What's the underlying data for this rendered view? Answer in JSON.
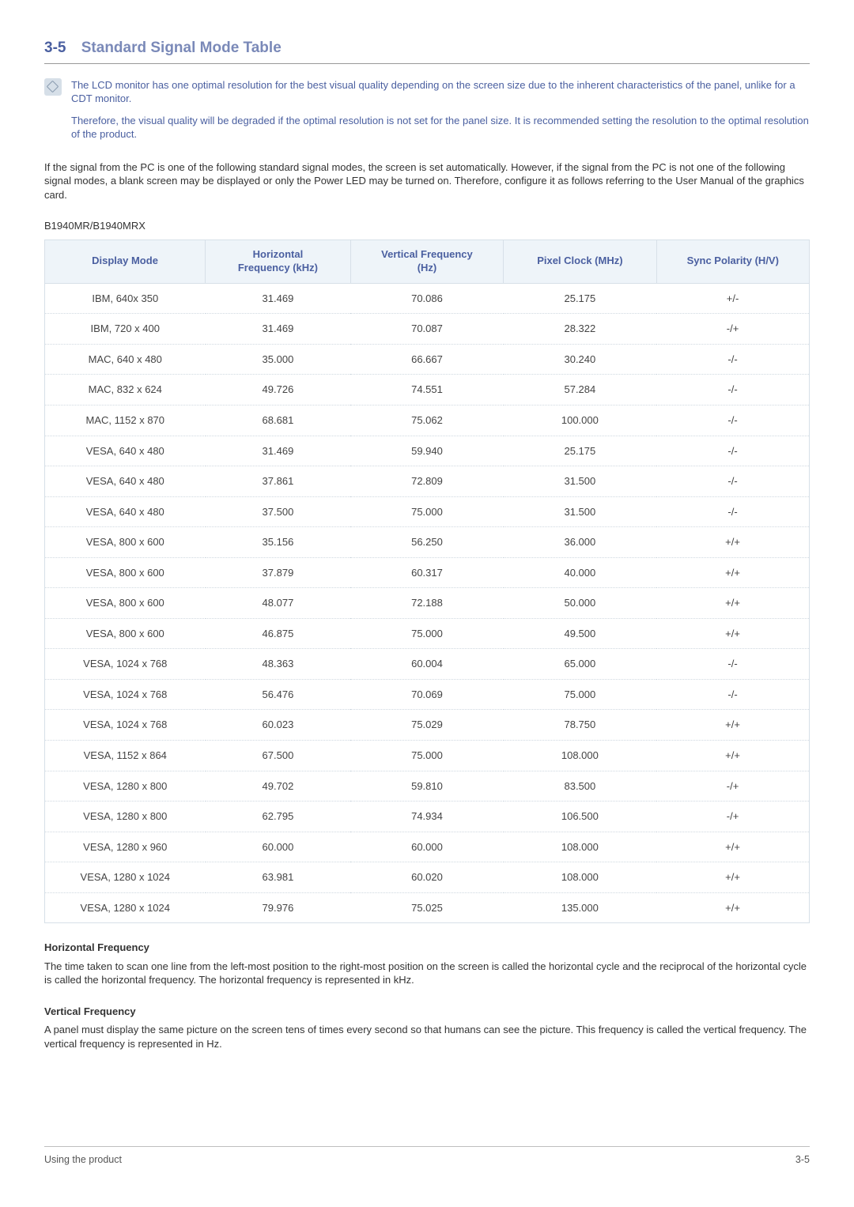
{
  "heading": {
    "number": "3-5",
    "title": "Standard Signal Mode Table"
  },
  "note": {
    "p1": "The LCD monitor has one optimal resolution for the best visual quality depending on the screen size due to the inherent characteristics of the panel, unlike for a CDT monitor.",
    "p2": "Therefore, the visual quality will be degraded if the optimal resolution is not set for the panel size. It is recommended setting the resolution to the optimal resolution of the product."
  },
  "intro": "If the signal from the PC is one of the following standard signal modes, the screen is set automatically. However, if the signal from the PC is not one of the following signal modes, a blank screen may be displayed or only the Power LED may be turned on. Therefore, configure it as follows referring to the User Manual of the graphics card.",
  "model": "B1940MR/B1940MRX",
  "table": {
    "columns": {
      "c0": "Display Mode",
      "c1_l1": "Horizontal",
      "c1_l2": "Frequency (kHz)",
      "c2_l1": "Vertical Frequency",
      "c2_l2": "(Hz)",
      "c3": "Pixel Clock (MHz)",
      "c4": "Sync Polarity (H/V)"
    },
    "widths": [
      "21%",
      "19%",
      "20%",
      "20%",
      "20%"
    ],
    "header_bg": "#eef4f9",
    "header_color": "#4a5fa0",
    "border_color": "#d7e0e8",
    "row_text_color": "#444444",
    "rows": [
      {
        "m": "IBM, 640x 350",
        "h": "31.469",
        "v": "70.086",
        "p": "25.175",
        "s": "+/-"
      },
      {
        "m": "IBM, 720 x 400",
        "h": "31.469",
        "v": "70.087",
        "p": "28.322",
        "s": "-/+"
      },
      {
        "m": "MAC, 640 x 480",
        "h": "35.000",
        "v": "66.667",
        "p": "30.240",
        "s": "-/-"
      },
      {
        "m": "MAC, 832 x 624",
        "h": "49.726",
        "v": "74.551",
        "p": "57.284",
        "s": "-/-"
      },
      {
        "m": "MAC, 1152 x 870",
        "h": "68.681",
        "v": "75.062",
        "p": "100.000",
        "s": "-/-"
      },
      {
        "m": "VESA, 640 x 480",
        "h": "31.469",
        "v": "59.940",
        "p": "25.175",
        "s": "-/-"
      },
      {
        "m": "VESA, 640 x 480",
        "h": "37.861",
        "v": "72.809",
        "p": "31.500",
        "s": "-/-"
      },
      {
        "m": "VESA, 640 x 480",
        "h": "37.500",
        "v": "75.000",
        "p": "31.500",
        "s": "-/-"
      },
      {
        "m": "VESA, 800 x 600",
        "h": "35.156",
        "v": "56.250",
        "p": "36.000",
        "s": "+/+"
      },
      {
        "m": "VESA, 800 x 600",
        "h": "37.879",
        "v": "60.317",
        "p": "40.000",
        "s": "+/+"
      },
      {
        "m": "VESA, 800 x 600",
        "h": "48.077",
        "v": "72.188",
        "p": "50.000",
        "s": "+/+"
      },
      {
        "m": "VESA, 800 x 600",
        "h": "46.875",
        "v": "75.000",
        "p": "49.500",
        "s": "+/+"
      },
      {
        "m": "VESA, 1024 x 768",
        "h": "48.363",
        "v": "60.004",
        "p": "65.000",
        "s": "-/-"
      },
      {
        "m": "VESA, 1024 x 768",
        "h": "56.476",
        "v": "70.069",
        "p": "75.000",
        "s": "-/-"
      },
      {
        "m": "VESA, 1024 x 768",
        "h": "60.023",
        "v": "75.029",
        "p": "78.750",
        "s": "+/+"
      },
      {
        "m": "VESA, 1152 x 864",
        "h": "67.500",
        "v": "75.000",
        "p": "108.000",
        "s": "+/+"
      },
      {
        "m": "VESA, 1280 x 800",
        "h": "49.702",
        "v": "59.810",
        "p": "83.500",
        "s": "-/+"
      },
      {
        "m": "VESA, 1280 x 800",
        "h": "62.795",
        "v": "74.934",
        "p": "106.500",
        "s": "-/+"
      },
      {
        "m": "VESA, 1280 x 960",
        "h": "60.000",
        "v": "60.000",
        "p": "108.000",
        "s": "+/+"
      },
      {
        "m": "VESA, 1280 x 1024",
        "h": "63.981",
        "v": "60.020",
        "p": "108.000",
        "s": "+/+"
      },
      {
        "m": "VESA, 1280 x 1024",
        "h": "79.976",
        "v": "75.025",
        "p": "135.000",
        "s": "+/+"
      }
    ]
  },
  "defs": {
    "hf_title": "Horizontal Frequency",
    "hf_body": "The time taken to scan one line from the left-most position to the right-most position on the screen is called the horizontal cycle and the reciprocal of the horizontal cycle is called the horizontal frequency. The horizontal frequency is represented in kHz.",
    "vf_title": "Vertical Frequency",
    "vf_body": "A panel must display the same picture on the screen tens of times every second so that humans can see the picture. This frequency is called the vertical frequency. The vertical frequency is represented in Hz."
  },
  "footer": {
    "left": "Using the product",
    "right": "3-5"
  },
  "colors": {
    "accent": "#4a5fa0",
    "title": "#7a89b8"
  }
}
